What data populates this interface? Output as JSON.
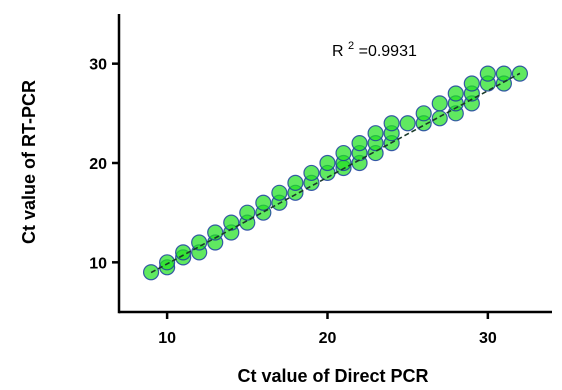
{
  "chart_data": {
    "type": "scatter",
    "xlabel": "Ct value of Direct PCR",
    "ylabel": "Ct value of RT-PCR",
    "xlim": [
      7,
      34
    ],
    "ylim": [
      5,
      35
    ],
    "xticks": [
      10,
      20,
      30
    ],
    "yticks": [
      10,
      20,
      30
    ],
    "annotation": {
      "prefix": "R",
      "superscript": "2",
      "value": "=0.9931"
    },
    "fit_line": {
      "slope": 0.872,
      "intercept": 1.12,
      "x_range": [
        9,
        32
      ],
      "style": "dashed"
    },
    "point_color": "#22e022",
    "point_edge_color": "#1f3fa0",
    "line_color": "#1a3a2a",
    "points": [
      {
        "x": 9.0,
        "y": 9.0
      },
      {
        "x": 10.0,
        "y": 9.5
      },
      {
        "x": 10.0,
        "y": 10.0
      },
      {
        "x": 11.0,
        "y": 10.5
      },
      {
        "x": 11.0,
        "y": 11.0
      },
      {
        "x": 12.0,
        "y": 11.0
      },
      {
        "x": 12.0,
        "y": 12.0
      },
      {
        "x": 13.0,
        "y": 12.0
      },
      {
        "x": 13.0,
        "y": 13.0
      },
      {
        "x": 14.0,
        "y": 13.0
      },
      {
        "x": 14.0,
        "y": 14.0
      },
      {
        "x": 15.0,
        "y": 14.0
      },
      {
        "x": 15.0,
        "y": 15.0
      },
      {
        "x": 16.0,
        "y": 15.0
      },
      {
        "x": 16.0,
        "y": 16.0
      },
      {
        "x": 17.0,
        "y": 16.0
      },
      {
        "x": 17.0,
        "y": 17.0
      },
      {
        "x": 18.0,
        "y": 17.0
      },
      {
        "x": 18.0,
        "y": 18.0
      },
      {
        "x": 19.0,
        "y": 18.0
      },
      {
        "x": 19.0,
        "y": 19.0
      },
      {
        "x": 20.0,
        "y": 19.0
      },
      {
        "x": 20.0,
        "y": 20.0
      },
      {
        "x": 21.0,
        "y": 19.5
      },
      {
        "x": 21.0,
        "y": 20.0
      },
      {
        "x": 21.0,
        "y": 21.0
      },
      {
        "x": 22.0,
        "y": 20.0
      },
      {
        "x": 22.0,
        "y": 21.0
      },
      {
        "x": 22.0,
        "y": 22.0
      },
      {
        "x": 23.0,
        "y": 21.0
      },
      {
        "x": 23.0,
        "y": 22.0
      },
      {
        "x": 23.0,
        "y": 23.0
      },
      {
        "x": 24.0,
        "y": 22.0
      },
      {
        "x": 24.0,
        "y": 23.0
      },
      {
        "x": 24.0,
        "y": 24.0
      },
      {
        "x": 25.0,
        "y": 24.0
      },
      {
        "x": 26.0,
        "y": 24.0
      },
      {
        "x": 26.0,
        "y": 25.0
      },
      {
        "x": 27.0,
        "y": 24.5
      },
      {
        "x": 27.0,
        "y": 26.0
      },
      {
        "x": 28.0,
        "y": 25.0
      },
      {
        "x": 28.0,
        "y": 26.0
      },
      {
        "x": 28.0,
        "y": 27.0
      },
      {
        "x": 29.0,
        "y": 26.0
      },
      {
        "x": 29.0,
        "y": 27.0
      },
      {
        "x": 29.0,
        "y": 28.0
      },
      {
        "x": 30.0,
        "y": 28.0
      },
      {
        "x": 30.0,
        "y": 29.0
      },
      {
        "x": 31.0,
        "y": 28.0
      },
      {
        "x": 31.0,
        "y": 29.0
      },
      {
        "x": 32.0,
        "y": 29.0
      }
    ]
  }
}
